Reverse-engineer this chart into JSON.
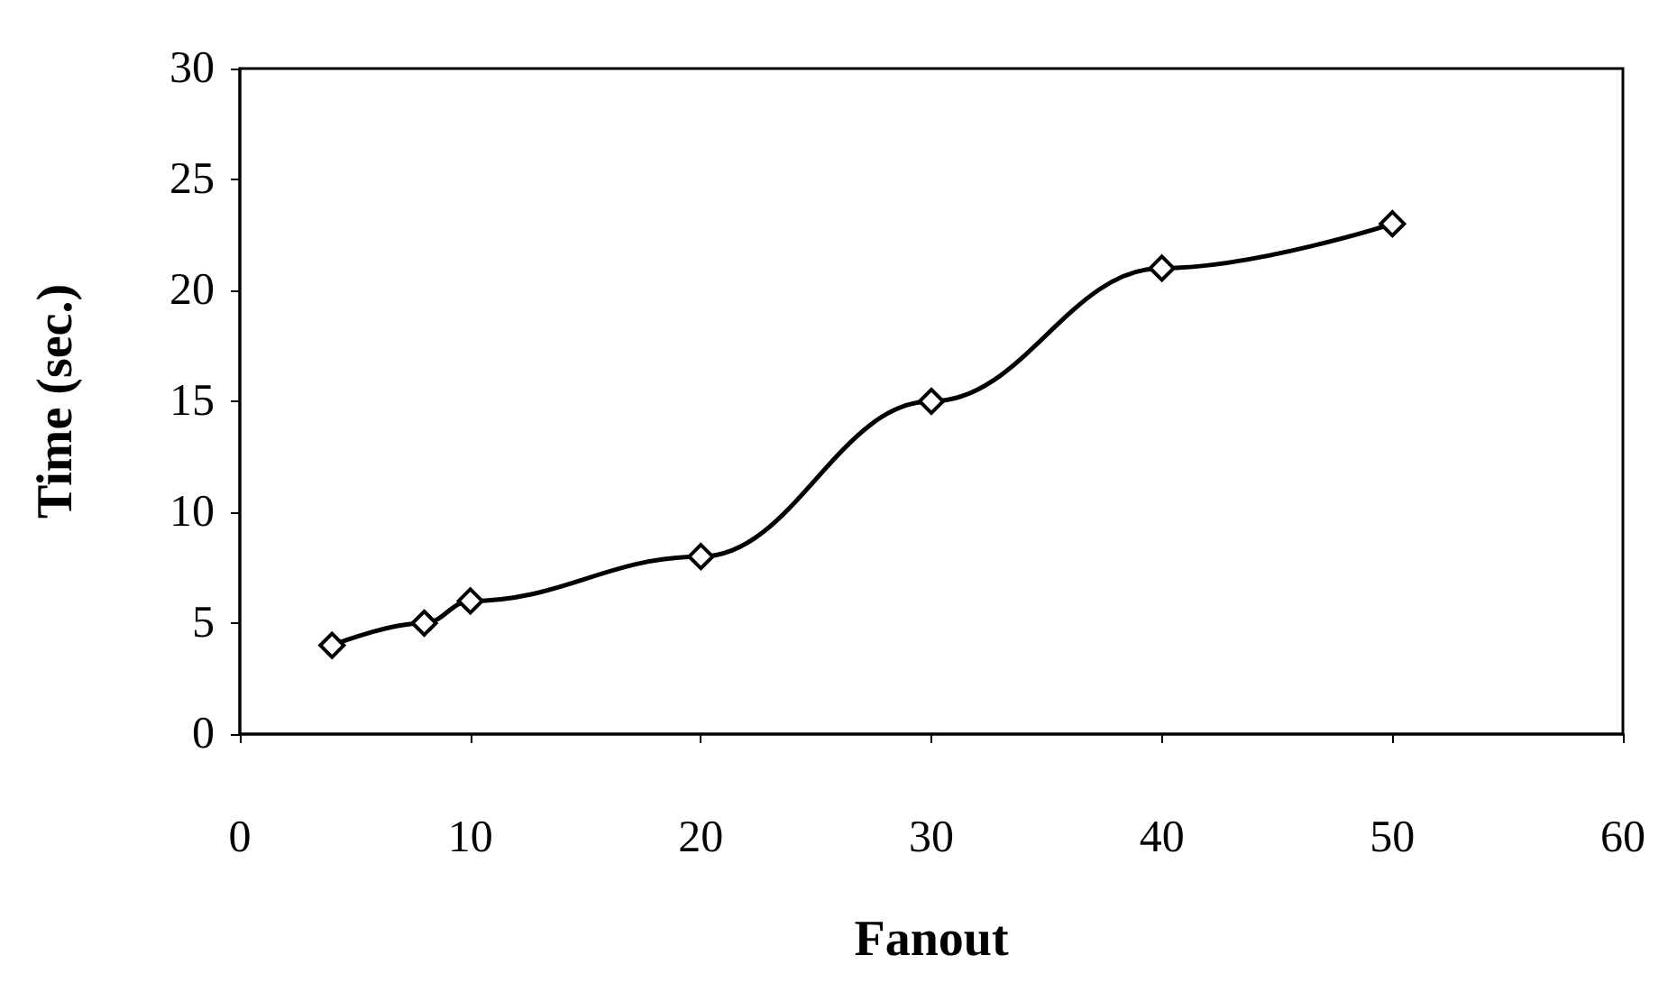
{
  "chart_data": {
    "type": "line",
    "xlabel": "Fanout",
    "ylabel": "Time (sec.)",
    "x": [
      4,
      8,
      10,
      20,
      30,
      40,
      50
    ],
    "series": [
      {
        "color": "#000000",
        "values": [
          4,
          5,
          6,
          8,
          15,
          21,
          23
        ]
      }
    ],
    "xlim": [
      0,
      60
    ],
    "xticks": [
      0,
      10,
      20,
      30,
      40,
      50,
      60
    ],
    "ylim": [
      0,
      30
    ],
    "yticks": [
      0,
      5,
      10,
      15,
      20,
      25,
      30
    ],
    "grid": false,
    "marker": "diamond",
    "line_style": "solid"
  }
}
